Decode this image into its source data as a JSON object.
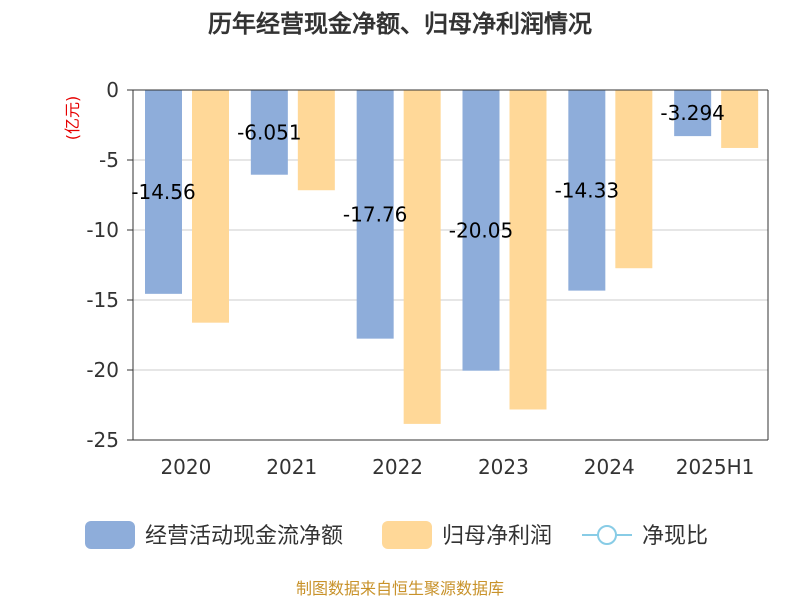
{
  "chart_data": {
    "type": "bar",
    "title": "历年经营现金净额、归母净利润情况",
    "ylabel": "(亿元)",
    "xlabel": "",
    "categories": [
      "2020",
      "2021",
      "2022",
      "2023",
      "2024",
      "2025H1"
    ],
    "series": [
      {
        "name": "经营活动现金流净额",
        "values": [
          -14.56,
          -6.051,
          -17.76,
          -20.05,
          -14.33,
          -3.294
        ],
        "labels": [
          "-14.56",
          "-6.051",
          "-17.76",
          "-20.05",
          "-14.33",
          "-3.294"
        ],
        "color": "#8eadda"
      },
      {
        "name": "归母净利润",
        "values": [
          -16.62,
          -7.16,
          -23.85,
          -22.82,
          -12.73,
          -4.14
        ],
        "labels": null,
        "color": "#ffd898"
      }
    ],
    "line_legend": {
      "name": "净现比",
      "color": "#88cce6"
    },
    "ylim": [
      -25,
      0
    ],
    "yticks": [
      0,
      -5,
      -10,
      -15,
      -20,
      -25
    ],
    "grid": true,
    "legend": "bottom",
    "source": "制图数据来自恒生聚源数据库"
  }
}
